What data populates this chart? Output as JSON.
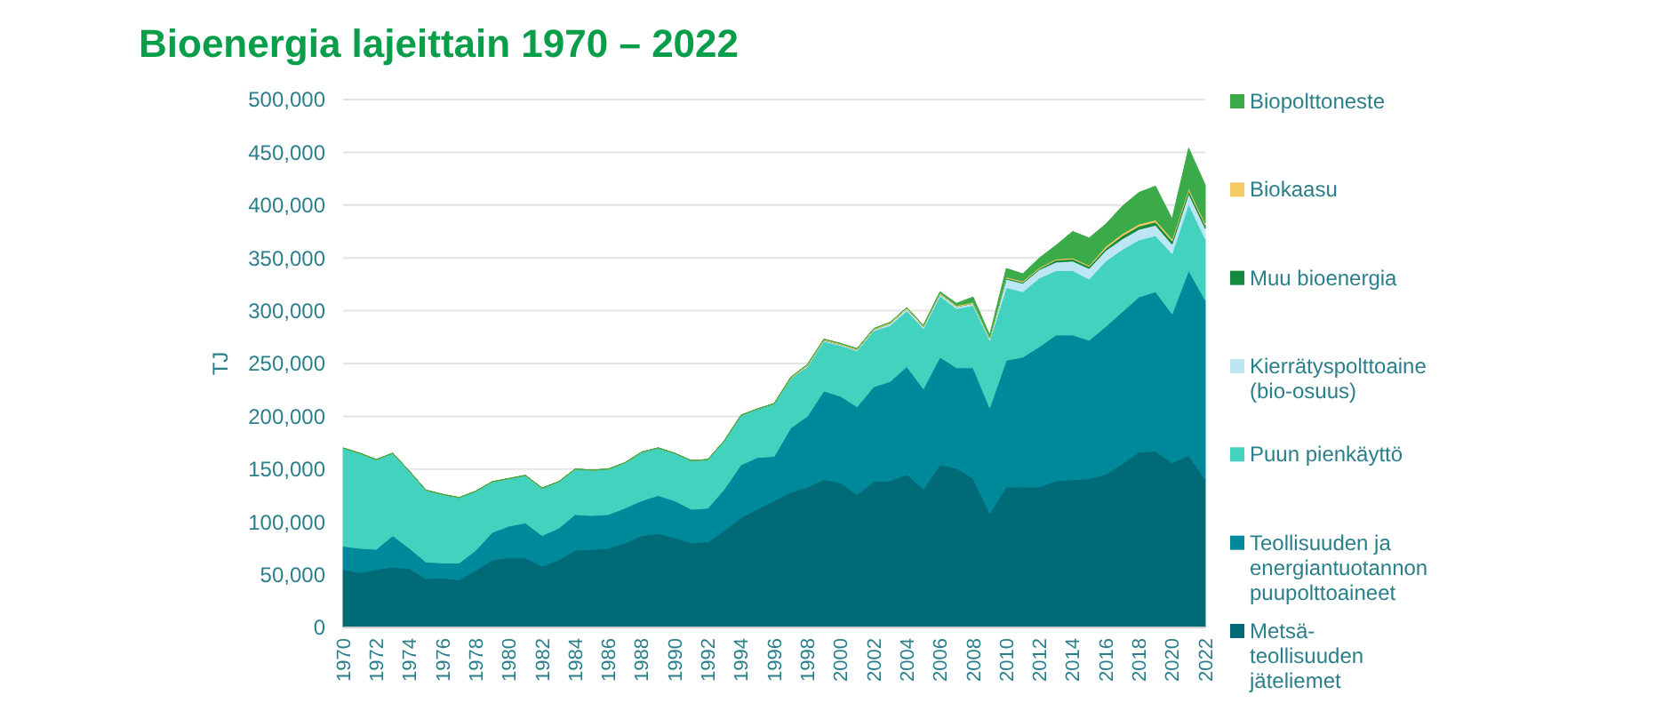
{
  "chart_data": {
    "type": "area",
    "stacked": true,
    "title": "Bioenergia lajeittain 1970 – 2022",
    "ylabel": "TJ",
    "grid": "y",
    "legend": "right",
    "categories": [
      "1970",
      null,
      "1972",
      null,
      "1974",
      null,
      "1976",
      null,
      "1978",
      null,
      "1980",
      null,
      "1982",
      null,
      "1984",
      null,
      "1986",
      null,
      "1988",
      null,
      "1990",
      null,
      "1992",
      null,
      "1994",
      null,
      "1996",
      null,
      "1998",
      null,
      "2000",
      null,
      "2002",
      null,
      "2004",
      null,
      "2006",
      null,
      "2008",
      null,
      "2010",
      null,
      "2012",
      null,
      "2014",
      null,
      "2016",
      null,
      "2018",
      null,
      "2020",
      null,
      "2022"
    ],
    "ylim": [
      0,
      500000
    ],
    "yticks": [
      {
        "value": 0,
        "label": "0"
      },
      {
        "value": 50000,
        "label": "50,000"
      },
      {
        "value": 100000,
        "label": "100,000"
      },
      {
        "value": 150000,
        "label": "150,000"
      },
      {
        "value": 200000,
        "label": "200,000"
      },
      {
        "value": 250000,
        "label": "250,000"
      },
      {
        "value": 300000,
        "label": "300,000"
      },
      {
        "value": 350000,
        "label": "350,000"
      },
      {
        "value": 400000,
        "label": "400,000"
      },
      {
        "value": 450000,
        "label": "450,000"
      },
      {
        "value": 500000,
        "label": "500,000"
      }
    ],
    "series": [
      {
        "name": "Metsä-teollisuuden jäteliemet",
        "color": "#006a77",
        "values": [
          55000,
          52000,
          55000,
          57000,
          56000,
          46000,
          47000,
          45000,
          54000,
          64000,
          66000,
          66000,
          58000,
          64000,
          73000,
          74000,
          75000,
          80000,
          87000,
          89000,
          85000,
          80000,
          81000,
          92000,
          104000,
          112000,
          120000,
          128000,
          133000,
          140000,
          137000,
          126000,
          138000,
          139000,
          145000,
          131000,
          154000,
          151000,
          141000,
          108000,
          133000,
          133000,
          133000,
          139000,
          140000,
          141000,
          145000,
          155000,
          166000,
          167000,
          156000,
          163000,
          140000
        ]
      },
      {
        "name": "Teollisuuden ja energiantuotannon puupolttoaineet",
        "color": "#00899a",
        "values": [
          22000,
          23000,
          19000,
          30000,
          19000,
          16000,
          14000,
          16000,
          19000,
          26000,
          30000,
          33000,
          29000,
          30000,
          34000,
          32000,
          32000,
          33000,
          33000,
          36000,
          35000,
          32000,
          32000,
          39000,
          50000,
          49000,
          42000,
          61000,
          67000,
          84000,
          82000,
          83000,
          90000,
          94000,
          102000,
          95000,
          102000,
          95000,
          105000,
          100000,
          120000,
          123000,
          133000,
          138000,
          137000,
          131000,
          140000,
          144000,
          147000,
          151000,
          141000,
          175000,
          170000
        ]
      },
      {
        "name": "Puun pienkäyttö",
        "color": "#43d2be",
        "values": [
          93000,
          90000,
          85000,
          78000,
          73000,
          68000,
          65000,
          62000,
          56000,
          48000,
          45000,
          45000,
          45000,
          44000,
          43000,
          43000,
          43000,
          43000,
          46000,
          45000,
          45000,
          46000,
          46000,
          46000,
          47000,
          46000,
          50000,
          47000,
          47000,
          47000,
          48000,
          53000,
          53000,
          53000,
          53000,
          57000,
          58000,
          56000,
          59000,
          64000,
          69000,
          62000,
          65000,
          61000,
          61000,
          58000,
          62000,
          59000,
          54000,
          53000,
          57000,
          63000,
          58000
        ]
      },
      {
        "name": "Kierrätyspolttoaine (bio-osuus)",
        "color": "#bde6f5",
        "values": [
          0,
          0,
          0,
          0,
          0,
          0,
          0,
          0,
          0,
          0,
          0,
          0,
          0,
          0,
          0,
          0,
          0,
          0,
          0,
          0,
          0,
          0,
          0,
          0,
          0,
          0,
          0,
          0,
          1000,
          1000,
          1000,
          1000,
          1000,
          2000,
          2000,
          2000,
          2000,
          2000,
          2000,
          2000,
          8000,
          8000,
          8000,
          8000,
          9000,
          10000,
          10000,
          10000,
          10000,
          10000,
          9000,
          10000,
          10000
        ]
      },
      {
        "name": "Muu bioenergia",
        "color": "#148a3c",
        "values": [
          0,
          0,
          0,
          0,
          0,
          0,
          0,
          0,
          0,
          0,
          0,
          0,
          0,
          0,
          0,
          0,
          0,
          0,
          0,
          0,
          0,
          0,
          0,
          0,
          0,
          0,
          0,
          0,
          0,
          0,
          0,
          0,
          0,
          0,
          0,
          0,
          0,
          0,
          0,
          0,
          1000,
          1000,
          1000,
          2000,
          2000,
          2000,
          2000,
          3000,
          3000,
          3000,
          3000,
          3000,
          3000
        ]
      },
      {
        "name": "Biokaasu",
        "color": "#f5c964",
        "values": [
          0,
          0,
          0,
          0,
          0,
          0,
          0,
          0,
          0,
          0,
          0,
          0,
          0,
          0,
          0,
          0,
          0,
          0,
          0,
          0,
          0,
          0,
          0,
          0,
          0,
          0,
          0,
          1000,
          1000,
          1000,
          1000,
          1000,
          1000,
          1000,
          1000,
          1000,
          1000,
          1000,
          1000,
          1000,
          1000,
          1000,
          1000,
          1000,
          1000,
          1000,
          2000,
          2000,
          2000,
          2000,
          2000,
          2000,
          2000
        ]
      },
      {
        "name": "Biopolttoneste",
        "color": "#3aab48",
        "values": [
          0,
          0,
          0,
          0,
          0,
          0,
          0,
          0,
          0,
          0,
          0,
          0,
          0,
          0,
          0,
          0,
          0,
          0,
          0,
          0,
          0,
          0,
          0,
          0,
          0,
          0,
          0,
          0,
          0,
          0,
          0,
          0,
          0,
          0,
          0,
          0,
          1000,
          2000,
          5000,
          2000,
          8000,
          7000,
          9000,
          13000,
          25000,
          26000,
          21000,
          26000,
          30000,
          32000,
          19000,
          38000,
          36000
        ]
      }
    ]
  }
}
